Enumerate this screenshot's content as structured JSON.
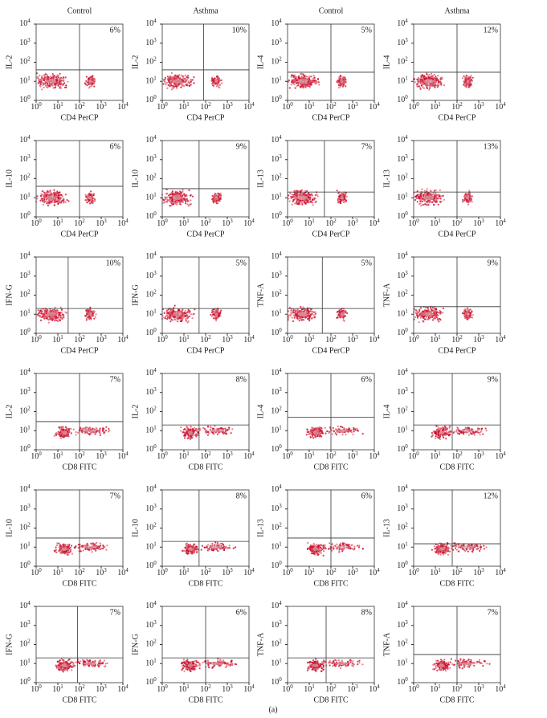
{
  "columns": [
    "Control",
    "Asthma",
    "Control",
    "Asthma"
  ],
  "ticks": [
    {
      "value": 1,
      "base": "10",
      "exp": "0"
    },
    {
      "value": 10,
      "base": "10",
      "exp": "1"
    },
    {
      "value": 100,
      "base": "10",
      "exp": "2"
    },
    {
      "value": 1000,
      "base": "10",
      "exp": "3"
    },
    {
      "value": 10000,
      "base": "10",
      "exp": "4"
    }
  ],
  "caption": "(a)",
  "panels": [
    {
      "ylabel": "IL-2",
      "xlabel": "CD4 PerCP",
      "percent": "6%",
      "gate": [
        100,
        40
      ]
    },
    {
      "ylabel": "IL-2",
      "xlabel": "CD4 PerCP",
      "percent": "10%",
      "gate": [
        80,
        40
      ]
    },
    {
      "ylabel": "IL-4",
      "xlabel": "CD4 PerCP",
      "percent": "5%",
      "gate": [
        100,
        30
      ]
    },
    {
      "ylabel": "IL-4",
      "xlabel": "CD4 PerCP",
      "percent": "12%",
      "gate": [
        100,
        30
      ]
    },
    {
      "ylabel": "IL-10",
      "xlabel": "CD4 PerCP",
      "percent": "6%",
      "gate": [
        100,
        40
      ]
    },
    {
      "ylabel": "IL-10",
      "xlabel": "CD4 PerCP",
      "percent": "9%",
      "gate": [
        50,
        30
      ]
    },
    {
      "ylabel": "IL-13",
      "xlabel": "CD4 PerCP",
      "percent": "7%",
      "gate": [
        50,
        20
      ]
    },
    {
      "ylabel": "IL-13",
      "xlabel": "CD4 PerCP",
      "percent": "13%",
      "gate": [
        100,
        20
      ]
    },
    {
      "ylabel": "IFN-G",
      "xlabel": "CD4 PerCP",
      "percent": "10%",
      "gate": [
        30,
        20
      ]
    },
    {
      "ylabel": "IFN-G",
      "xlabel": "CD4 PerCP",
      "percent": "5%",
      "gate": [
        50,
        20
      ]
    },
    {
      "ylabel": "TNF-A",
      "xlabel": "CD4 PerCP",
      "percent": "5%",
      "gate": [
        40,
        20
      ]
    },
    {
      "ylabel": "TNF-A",
      "xlabel": "CD4 PerCP",
      "percent": "9%",
      "gate": [
        100,
        25
      ]
    },
    {
      "ylabel": "IL-2",
      "xlabel": "CD8 FITC",
      "percent": "7%",
      "gate": [
        100,
        30
      ]
    },
    {
      "ylabel": "IL-2",
      "xlabel": "CD8 FITC",
      "percent": "8%",
      "gate": [
        50,
        20
      ]
    },
    {
      "ylabel": "IL-4",
      "xlabel": "CD8 FITC",
      "percent": "6%",
      "gate": [
        100,
        50
      ]
    },
    {
      "ylabel": "IL-4",
      "xlabel": "CD8 FITC",
      "percent": "9%",
      "gate": [
        60,
        20
      ]
    },
    {
      "ylabel": "IL-10",
      "xlabel": "CD8 FITC",
      "percent": "7%",
      "gate": [
        100,
        30
      ]
    },
    {
      "ylabel": "IL-10",
      "xlabel": "CD8 FITC",
      "percent": "8%",
      "gate": [
        50,
        20
      ]
    },
    {
      "ylabel": "IL-13",
      "xlabel": "CD8 FITC",
      "percent": "6%",
      "gate": [
        100,
        30
      ]
    },
    {
      "ylabel": "IL-13",
      "xlabel": "CD8 FITC",
      "percent": "12%",
      "gate": [
        60,
        15
      ]
    },
    {
      "ylabel": "IFN-G",
      "xlabel": "CD8 FITC",
      "percent": "7%",
      "gate": [
        80,
        20
      ]
    },
    {
      "ylabel": "IFN-G",
      "xlabel": "CD8 FITC",
      "percent": "6%",
      "gate": [
        100,
        20
      ]
    },
    {
      "ylabel": "TNF-A",
      "xlabel": "CD8 FITC",
      "percent": "8%",
      "gate": [
        60,
        20
      ]
    },
    {
      "ylabel": "TNF-A",
      "xlabel": "CD8 FITC",
      "percent": "7%",
      "gate": [
        100,
        30
      ]
    }
  ]
}
